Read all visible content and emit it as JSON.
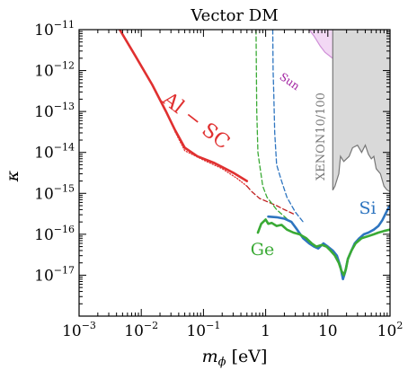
{
  "chart_data": {
    "type": "line",
    "title": "Vector DM",
    "xlabel_symbol": "m",
    "xlabel_sub": "ϕ",
    "xlabel_unit": "[eV]",
    "ylabel": "κ",
    "xscale": "log",
    "yscale": "log",
    "xlim": [
      0.001,
      100
    ],
    "ylim": [
      1e-18,
      1e-11
    ],
    "x_ticks": [
      {
        "base": "10",
        "exp": "−3",
        "value": 0.001
      },
      {
        "base": "10",
        "exp": "−2",
        "value": 0.01
      },
      {
        "base": "10",
        "exp": "−1",
        "value": 0.1
      },
      {
        "base": "1",
        "exp": "",
        "value": 1
      },
      {
        "base": "10",
        "exp": "",
        "value": 10
      },
      {
        "base": "10",
        "exp": "2",
        "value": 100
      }
    ],
    "y_ticks": [
      {
        "base": "10",
        "exp": "−11",
        "value": 1e-11
      },
      {
        "base": "10",
        "exp": "−12",
        "value": 1e-12
      },
      {
        "base": "10",
        "exp": "−13",
        "value": 1e-13
      },
      {
        "base": "10",
        "exp": "−14",
        "value": 1e-14
      },
      {
        "base": "10",
        "exp": "−15",
        "value": 1e-15
      },
      {
        "base": "10",
        "exp": "−16",
        "value": 1e-16
      },
      {
        "base": "10",
        "exp": "−17",
        "value": 1e-17
      }
    ],
    "grid": false,
    "annotations": [
      {
        "text": "Al − SC",
        "color": "#e03030"
      },
      {
        "text": "Sun",
        "color": "#a020a0"
      },
      {
        "text": "XENON10/100",
        "color": "#777777"
      },
      {
        "text": "Si",
        "color": "#2e75c0"
      },
      {
        "text": "Ge",
        "color": "#3aaa35"
      }
    ],
    "series": [
      {
        "key": "al_sc",
        "style": "solid",
        "color": "#e03030",
        "points": [
          [
            0.0045,
            1e-11
          ],
          [
            0.008,
            2.3e-12
          ],
          [
            0.015,
            4.5e-13
          ],
          [
            0.025,
            1e-13
          ],
          [
            0.035,
            3.5e-14
          ],
          [
            0.05,
            1.3e-14
          ],
          [
            0.08,
            8e-15
          ],
          [
            0.15,
            5.5e-15
          ],
          [
            0.3,
            3.2e-15
          ],
          [
            0.5,
            2e-15
          ]
        ]
      },
      {
        "key": "al_sc_dotted",
        "style": "dotted",
        "color": "#e03030",
        "points": [
          [
            0.035,
            3.2e-14
          ],
          [
            0.05,
            1.1e-14
          ],
          [
            0.1,
            6.5e-15
          ],
          [
            0.2,
            4e-15
          ],
          [
            0.35,
            2.3e-15
          ],
          [
            0.5,
            1.5e-15
          ]
        ]
      },
      {
        "key": "al_sc_dashed",
        "style": "dashed",
        "color": "#c02020",
        "points": [
          [
            0.5,
            1.5e-15
          ],
          [
            0.6,
            1.1e-15
          ],
          [
            0.8,
            7.5e-16
          ],
          [
            1,
            6.5e-16
          ],
          [
            1.5,
            5e-16
          ],
          [
            2,
            4e-16
          ],
          [
            3,
            3e-16
          ]
        ]
      },
      {
        "key": "ge_dashed",
        "style": "dashed",
        "color": "#3aaa35",
        "points": [
          [
            0.7,
            1e-11
          ],
          [
            0.72,
            1e-13
          ],
          [
            0.75,
            1e-14
          ],
          [
            0.8,
            5e-15
          ],
          [
            0.9,
            1.5e-15
          ],
          [
            1.05,
            8e-16
          ],
          [
            1.5,
            4e-16
          ],
          [
            2.5,
            2e-16
          ]
        ]
      },
      {
        "key": "si_dashed",
        "style": "dashed",
        "color": "#2e75c0",
        "points": [
          [
            1.3,
            1e-11
          ],
          [
            1.32,
            1e-12
          ],
          [
            1.35,
            3e-13
          ],
          [
            1.4,
            3e-14
          ],
          [
            1.5,
            5e-15
          ],
          [
            1.8,
            2e-15
          ],
          [
            2.2,
            8e-16
          ],
          [
            3,
            3.5e-16
          ],
          [
            4,
            2e-16
          ]
        ]
      },
      {
        "key": "si",
        "style": "solid",
        "color": "#2e75c0",
        "points": [
          [
            1.1,
            2.7e-16
          ],
          [
            1.5,
            2.6e-16
          ],
          [
            2,
            2.4e-16
          ],
          [
            2.6,
            2e-16
          ],
          [
            3.2,
            1.3e-16
          ],
          [
            4,
            8e-17
          ],
          [
            5,
            6e-17
          ],
          [
            6,
            5e-17
          ],
          [
            7,
            4.5e-17
          ],
          [
            8.5,
            6e-17
          ],
          [
            10,
            5e-17
          ],
          [
            12,
            4e-17
          ],
          [
            14,
            3e-17
          ],
          [
            16,
            1.6e-17
          ],
          [
            17.5,
            8e-18
          ],
          [
            19,
            1.2e-17
          ],
          [
            21,
            2.5e-17
          ],
          [
            24,
            4e-17
          ],
          [
            27,
            6e-17
          ],
          [
            32,
            8e-17
          ],
          [
            38,
            1e-16
          ],
          [
            45,
            1.1e-16
          ],
          [
            55,
            1.3e-16
          ],
          [
            65,
            1.6e-16
          ],
          [
            75,
            2.2e-16
          ],
          [
            85,
            3.2e-16
          ],
          [
            95,
            4.5e-16
          ],
          [
            100,
            5e-16
          ]
        ]
      },
      {
        "key": "ge",
        "style": "solid",
        "color": "#3aaa35",
        "points": [
          [
            0.75,
            1.1e-16
          ],
          [
            0.85,
            1.8e-16
          ],
          [
            1,
            2.3e-16
          ],
          [
            1.1,
            1.8e-16
          ],
          [
            1.25,
            1.9e-16
          ],
          [
            1.5,
            1.6e-16
          ],
          [
            1.8,
            1.7e-16
          ],
          [
            2.2,
            1.3e-16
          ],
          [
            2.8,
            1.1e-16
          ],
          [
            3.5,
            1e-16
          ],
          [
            4.5,
            8e-17
          ],
          [
            5.5,
            6e-17
          ],
          [
            6.5,
            5e-17
          ],
          [
            8,
            5.5e-17
          ],
          [
            9.5,
            5e-17
          ],
          [
            11,
            4e-17
          ],
          [
            13,
            3e-17
          ],
          [
            15,
            2e-17
          ],
          [
            16.5,
            1.3e-17
          ],
          [
            18,
            1e-17
          ],
          [
            19.5,
            1.4e-17
          ],
          [
            21,
            2.5e-17
          ],
          [
            24,
            4e-17
          ],
          [
            28,
            6e-17
          ],
          [
            35,
            8e-17
          ],
          [
            45,
            9e-17
          ],
          [
            55,
            1e-16
          ],
          [
            65,
            1.1e-16
          ],
          [
            80,
            1.2e-16
          ],
          [
            100,
            1.3e-16
          ]
        ]
      }
    ],
    "regions": [
      {
        "key": "sun",
        "fill": "#f2d8f4",
        "edge": "#d090d8",
        "boundary": [
          [
            5,
            1e-11
          ],
          [
            6,
            7e-12
          ],
          [
            7.5,
            4e-12
          ],
          [
            9,
            2.8e-12
          ],
          [
            11,
            2.2e-12
          ],
          [
            13,
            1.8e-12
          ],
          [
            16,
            1.2e-12
          ],
          [
            22,
            7e-13
          ],
          [
            35,
            4e-13
          ],
          [
            60,
            2.3e-13
          ],
          [
            100,
            1.5e-13
          ]
        ]
      },
      {
        "key": "xenon",
        "fill": "#d9d9d9",
        "edge": "#777777",
        "boundary": [
          [
            12,
            1e-11
          ],
          [
            12,
            1.2e-15
          ],
          [
            13,
            1.5e-15
          ],
          [
            15,
            3e-15
          ],
          [
            16,
            8e-15
          ],
          [
            18,
            6e-15
          ],
          [
            22,
            8e-15
          ],
          [
            25,
            1.3e-14
          ],
          [
            30,
            1.5e-14
          ],
          [
            35,
            1e-14
          ],
          [
            40,
            1.5e-14
          ],
          [
            45,
            9e-15
          ],
          [
            50,
            7e-15
          ],
          [
            55,
            8e-15
          ],
          [
            60,
            4e-15
          ],
          [
            70,
            3e-15
          ],
          [
            80,
            1.5e-15
          ],
          [
            90,
            1.2e-15
          ],
          [
            100,
            1.1e-15
          ]
        ]
      }
    ]
  }
}
